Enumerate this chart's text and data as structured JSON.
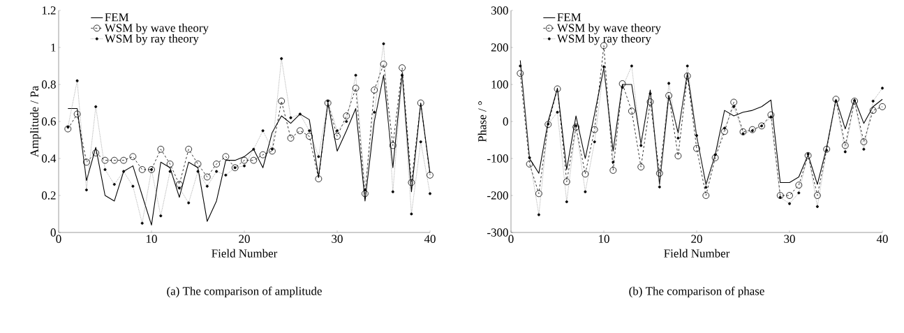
{
  "chart_data": [
    {
      "type": "line",
      "title": "(a) The comparison of amplitude",
      "xlabel": "Field Number",
      "ylabel": "Amplitude / Pa",
      "x": [
        1,
        2,
        3,
        4,
        5,
        6,
        7,
        8,
        9,
        10,
        11,
        12,
        13,
        14,
        15,
        16,
        17,
        18,
        19,
        20,
        21,
        22,
        23,
        24,
        25,
        26,
        27,
        28,
        29,
        30,
        31,
        32,
        33,
        34,
        35,
        36,
        37,
        38,
        39,
        40
      ],
      "xlim": [
        0,
        40
      ],
      "xticks": [
        0,
        10,
        20,
        30,
        40
      ],
      "ylim": [
        0,
        1.2
      ],
      "yticks": [
        0,
        0.2,
        0.4,
        0.6,
        0.8,
        1,
        1.2
      ],
      "legend": "top left",
      "series": [
        {
          "name": "FEM",
          "color": "#000000",
          "marker": "none",
          "line_style": "solid",
          "values": [
            0.67,
            0.67,
            0.28,
            0.46,
            0.2,
            0.17,
            0.33,
            0.36,
            0.2,
            0.04,
            0.38,
            0.35,
            0.19,
            0.38,
            0.35,
            0.06,
            0.17,
            0.39,
            0.39,
            0.41,
            0.45,
            0.35,
            0.54,
            0.63,
            0.59,
            0.64,
            0.61,
            0.3,
            0.7,
            0.44,
            0.55,
            0.67,
            0.17,
            0.6,
            0.85,
            0.35,
            0.86,
            0.22,
            0.7,
            0.32
          ]
        },
        {
          "name": "WSM by wave theory",
          "color": "#000000",
          "marker": "circle",
          "line_style": "dashed",
          "values": [
            0.56,
            0.64,
            0.38,
            0.43,
            0.39,
            0.39,
            0.39,
            0.41,
            0.34,
            0.34,
            0.45,
            0.37,
            0.26,
            0.45,
            0.37,
            0.3,
            0.37,
            0.41,
            0.35,
            0.39,
            0.39,
            0.42,
            0.44,
            0.71,
            0.51,
            0.55,
            0.52,
            0.29,
            0.7,
            0.52,
            0.63,
            0.78,
            0.21,
            0.77,
            0.91,
            0.47,
            0.89,
            0.27,
            0.7,
            0.31
          ]
        },
        {
          "name": "WSM by ray theory",
          "color": "#000000",
          "marker": "circle",
          "line_style": "dotted",
          "values": [
            0.57,
            0.82,
            0.23,
            0.68,
            0.34,
            0.26,
            0.33,
            0.25,
            0.05,
            0.34,
            0.09,
            0.33,
            0.24,
            0.16,
            0.33,
            0.25,
            0.33,
            0.31,
            0.35,
            0.36,
            0.45,
            0.55,
            0.45,
            0.94,
            0.62,
            0.64,
            0.55,
            0.41,
            0.71,
            0.55,
            0.6,
            0.85,
            0.23,
            0.65,
            1.02,
            0.22,
            0.85,
            0.1,
            0.49,
            0.21
          ]
        }
      ]
    },
    {
      "type": "line",
      "title": "(b) The comparison of phase",
      "xlabel": "Field Number",
      "ylabel": "Phase / °",
      "x": [
        1,
        2,
        3,
        4,
        5,
        6,
        7,
        8,
        9,
        10,
        11,
        12,
        13,
        14,
        15,
        16,
        17,
        18,
        19,
        20,
        21,
        22,
        23,
        24,
        25,
        26,
        27,
        28,
        29,
        30,
        31,
        32,
        33,
        34,
        35,
        36,
        37,
        38,
        39,
        40
      ],
      "xlim": [
        0,
        40
      ],
      "xticks": [
        0,
        10,
        20,
        30,
        40
      ],
      "ylim": [
        -300,
        300
      ],
      "yticks": [
        -300,
        -200,
        -100,
        0,
        100,
        200,
        300
      ],
      "legend": "top left",
      "series": [
        {
          "name": "FEM",
          "color": "#000000",
          "marker": "none",
          "line_style": "solid",
          "values": [
            165,
            -100,
            -140,
            0,
            90,
            -130,
            15,
            -100,
            20,
            145,
            -80,
            100,
            100,
            -60,
            85,
            -170,
            70,
            -30,
            130,
            -40,
            -170,
            -90,
            30,
            15,
            25,
            30,
            40,
            58,
            -165,
            -165,
            -150,
            -90,
            -170,
            -70,
            60,
            -20,
            60,
            -5,
            40,
            60
          ]
        },
        {
          "name": "WSM by wave theory",
          "color": "#000000",
          "marker": "circle",
          "line_style": "dashed",
          "values": [
            130,
            -115,
            -195,
            -8,
            88,
            -163,
            -15,
            -142,
            -22,
            205,
            -132,
            102,
            28,
            -123,
            53,
            -140,
            70,
            -93,
            123,
            -73,
            -200,
            -98,
            -27,
            52,
            -28,
            -22,
            -12,
            18,
            -200,
            -200,
            -172,
            -92,
            -200,
            -75,
            60,
            -65,
            55,
            -55,
            30,
            40
          ]
        },
        {
          "name": "WSM by ray theory",
          "color": "#000000",
          "marker": "circle",
          "line_style": "dotted",
          "values": [
            150,
            -98,
            -252,
            -7,
            25,
            -217,
            -12,
            -190,
            -55,
            148,
            -110,
            92,
            150,
            -65,
            75,
            -177,
            103,
            -45,
            150,
            -38,
            -178,
            -90,
            -18,
            40,
            -33,
            -25,
            -12,
            12,
            -205,
            -222,
            -193,
            -88,
            -230,
            -78,
            55,
            -82,
            57,
            -75,
            55,
            90
          ]
        }
      ]
    }
  ]
}
